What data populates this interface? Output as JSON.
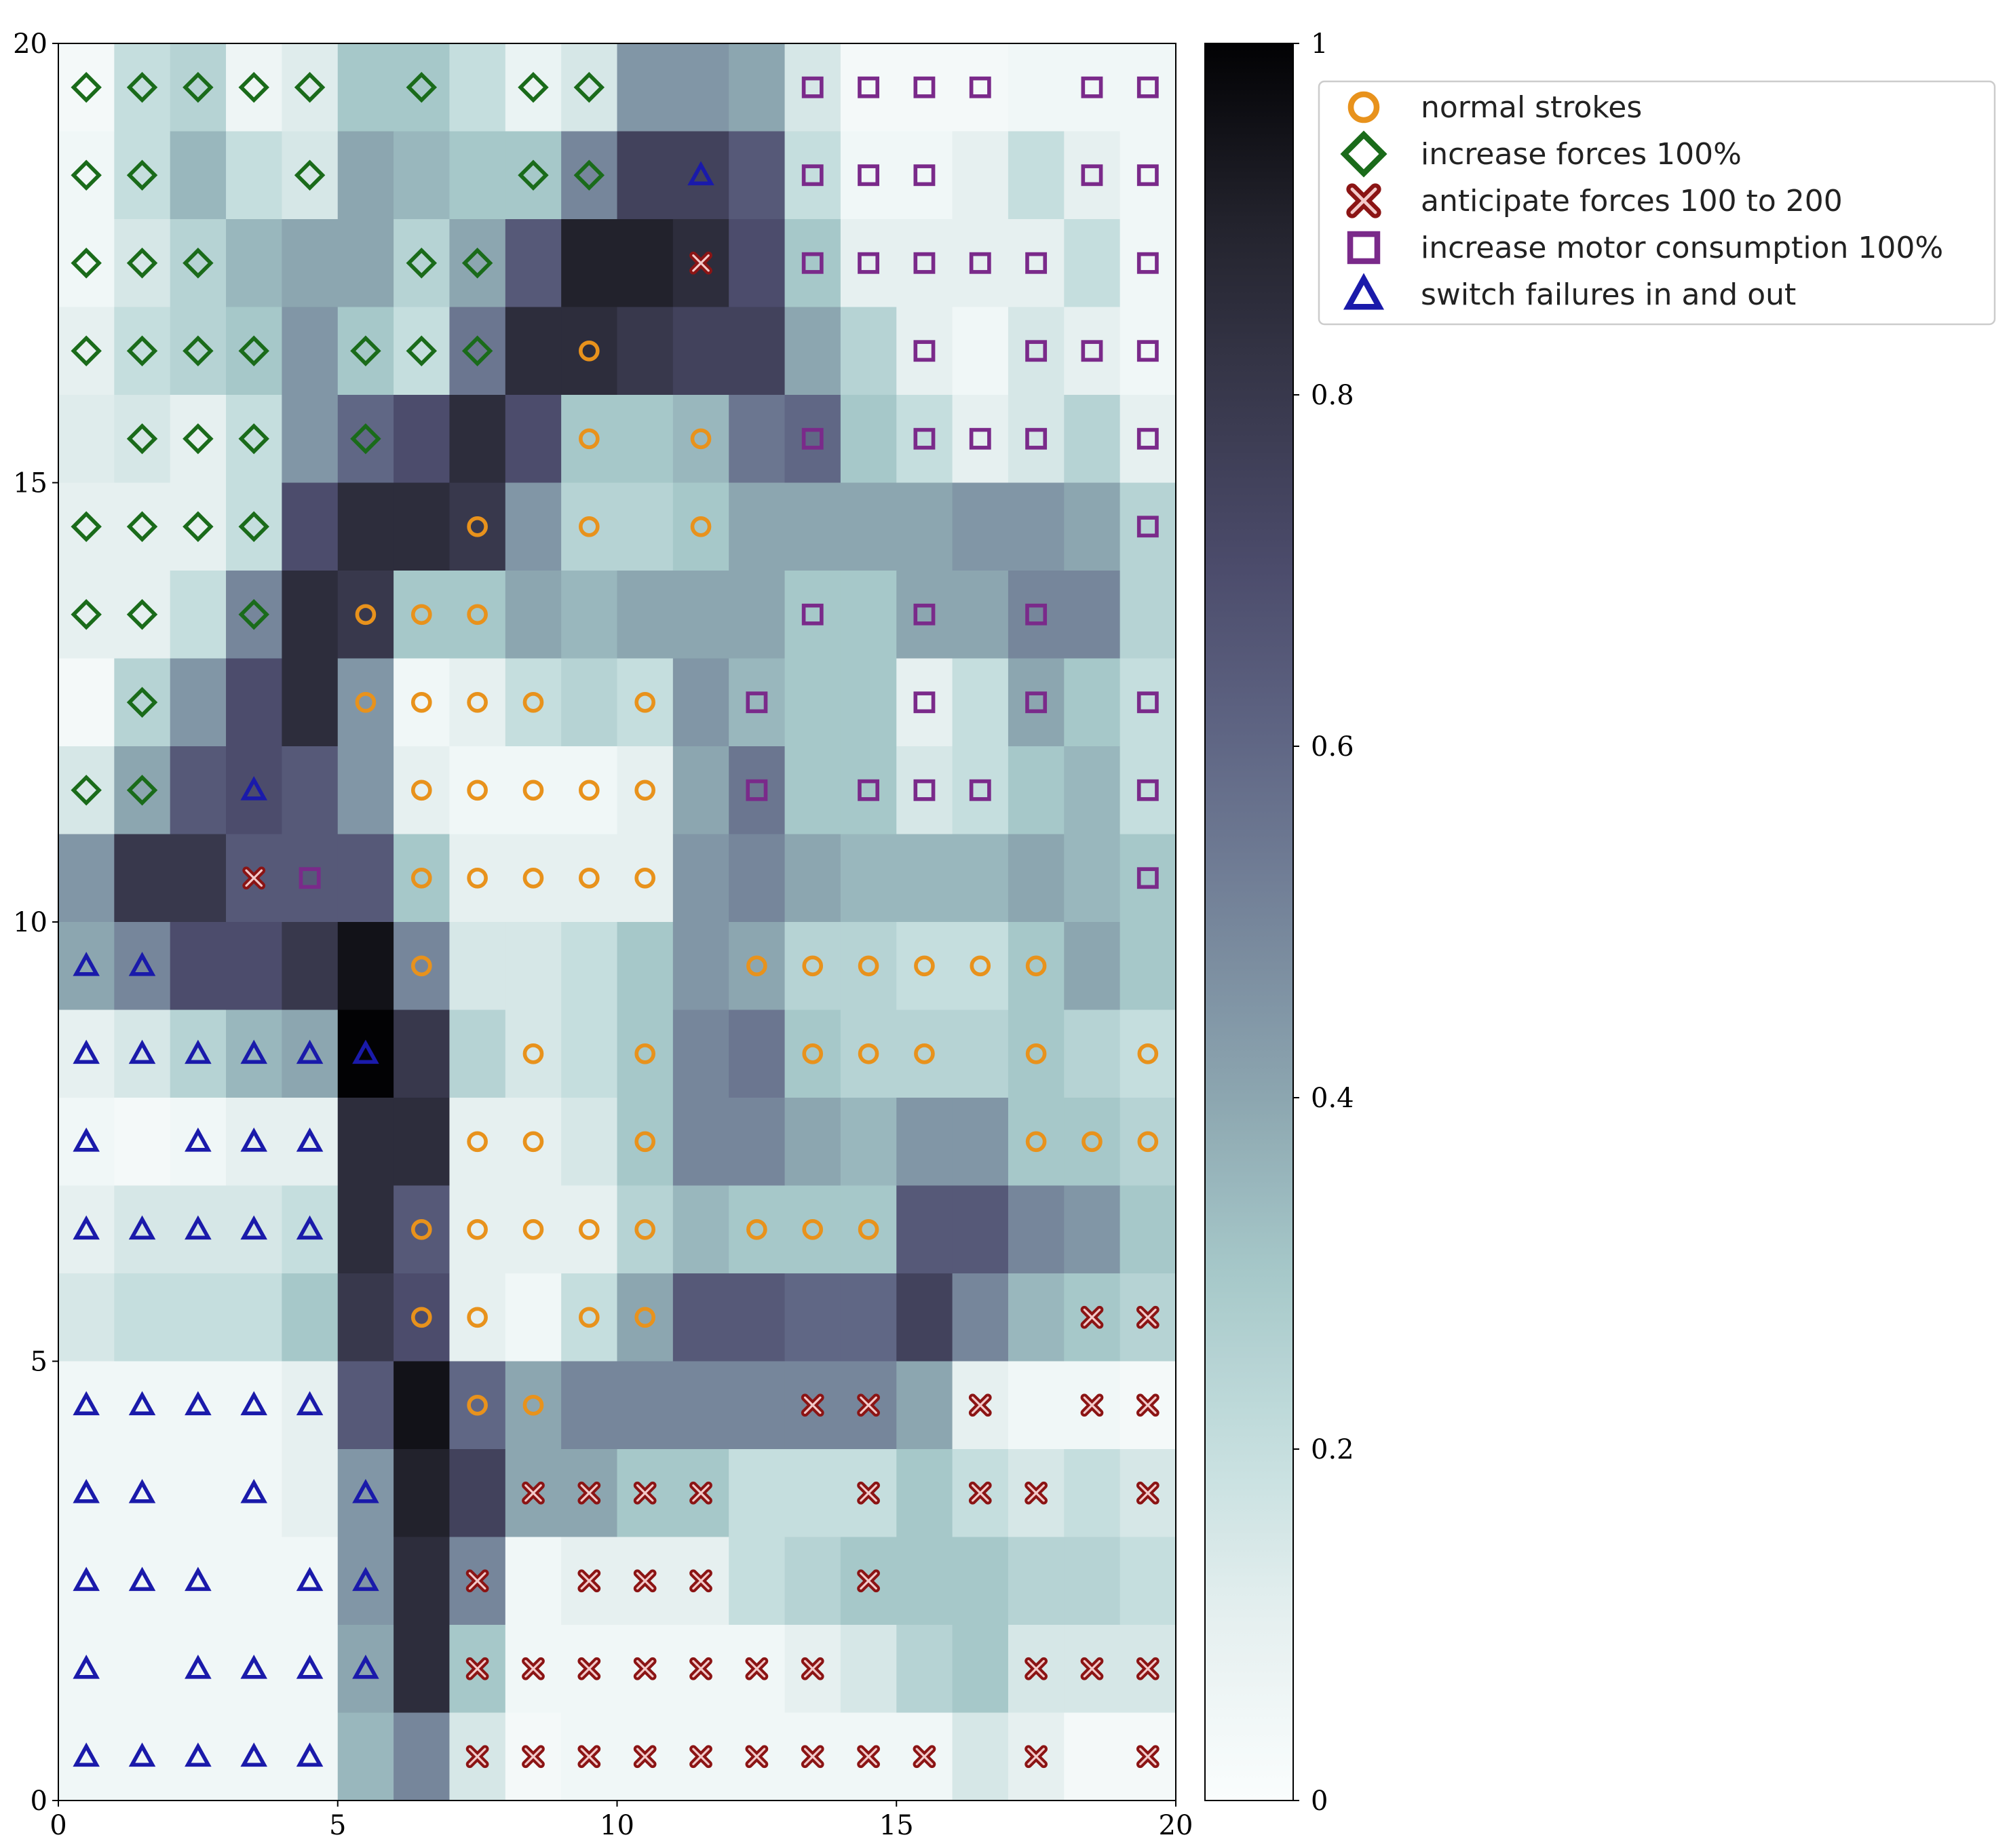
{
  "chart_data": {
    "type": "heatmap",
    "title": "",
    "xlabel": "",
    "ylabel": "",
    "xlim": [
      0,
      20
    ],
    "ylim": [
      0,
      20
    ],
    "x_ticks": [
      "0",
      "5",
      "10",
      "15",
      "20"
    ],
    "y_ticks": [
      "0",
      "5",
      "10",
      "15",
      "20"
    ],
    "colorbar": {
      "min": 0,
      "max": 1,
      "ticks": [
        "0",
        "0.2",
        "0.4",
        "0.6",
        "0.8",
        "1"
      ],
      "colormap": "bone_r"
    },
    "grid_rows_top_to_bottom": [
      [
        0.03,
        0.2,
        0.25,
        0.06,
        0.12,
        0.3,
        0.3,
        0.2,
        0.08,
        0.15,
        0.45,
        0.45,
        0.4,
        0.15,
        0.03,
        0.03,
        0.03,
        0.05,
        0.05,
        0.05
      ],
      [
        0.05,
        0.2,
        0.35,
        0.2,
        0.15,
        0.4,
        0.35,
        0.3,
        0.3,
        0.5,
        0.75,
        0.75,
        0.65,
        0.2,
        0.05,
        0.05,
        0.1,
        0.2,
        0.1,
        0.05
      ],
      [
        0.05,
        0.15,
        0.25,
        0.35,
        0.4,
        0.4,
        0.25,
        0.4,
        0.65,
        0.9,
        0.9,
        0.85,
        0.7,
        0.3,
        0.1,
        0.1,
        0.1,
        0.1,
        0.2,
        0.05
      ],
      [
        0.1,
        0.2,
        0.25,
        0.3,
        0.45,
        0.3,
        0.2,
        0.55,
        0.85,
        0.85,
        0.8,
        0.75,
        0.75,
        0.4,
        0.25,
        0.1,
        0.05,
        0.15,
        0.1,
        0.05
      ],
      [
        0.12,
        0.15,
        0.1,
        0.2,
        0.45,
        0.6,
        0.7,
        0.85,
        0.7,
        0.3,
        0.3,
        0.35,
        0.55,
        0.6,
        0.3,
        0.2,
        0.1,
        0.15,
        0.25,
        0.1
      ],
      [
        0.1,
        0.1,
        0.1,
        0.2,
        0.7,
        0.85,
        0.85,
        0.8,
        0.45,
        0.25,
        0.25,
        0.3,
        0.4,
        0.4,
        0.4,
        0.4,
        0.45,
        0.45,
        0.4,
        0.25
      ],
      [
        0.1,
        0.1,
        0.2,
        0.5,
        0.85,
        0.8,
        0.3,
        0.3,
        0.4,
        0.35,
        0.4,
        0.4,
        0.4,
        0.3,
        0.3,
        0.4,
        0.4,
        0.5,
        0.5,
        0.25
      ],
      [
        0.03,
        0.25,
        0.45,
        0.7,
        0.85,
        0.45,
        0.05,
        0.1,
        0.2,
        0.25,
        0.2,
        0.45,
        0.35,
        0.3,
        0.3,
        0.1,
        0.2,
        0.4,
        0.3,
        0.2
      ],
      [
        0.15,
        0.4,
        0.65,
        0.7,
        0.65,
        0.45,
        0.1,
        0.05,
        0.05,
        0.05,
        0.1,
        0.4,
        0.55,
        0.3,
        0.3,
        0.15,
        0.2,
        0.3,
        0.35,
        0.2
      ],
      [
        0.45,
        0.8,
        0.8,
        0.65,
        0.65,
        0.65,
        0.3,
        0.1,
        0.1,
        0.1,
        0.1,
        0.45,
        0.5,
        0.4,
        0.35,
        0.35,
        0.35,
        0.4,
        0.35,
        0.3
      ],
      [
        0.4,
        0.5,
        0.7,
        0.7,
        0.8,
        0.95,
        0.5,
        0.15,
        0.15,
        0.2,
        0.3,
        0.45,
        0.4,
        0.25,
        0.25,
        0.2,
        0.2,
        0.3,
        0.4,
        0.3
      ],
      [
        0.1,
        0.15,
        0.25,
        0.35,
        0.4,
        1.0,
        0.8,
        0.25,
        0.15,
        0.2,
        0.3,
        0.5,
        0.55,
        0.3,
        0.25,
        0.25,
        0.25,
        0.3,
        0.25,
        0.2
      ],
      [
        0.05,
        0.03,
        0.05,
        0.1,
        0.1,
        0.85,
        0.85,
        0.1,
        0.1,
        0.15,
        0.3,
        0.5,
        0.5,
        0.4,
        0.35,
        0.45,
        0.45,
        0.3,
        0.3,
        0.25
      ],
      [
        0.1,
        0.15,
        0.15,
        0.15,
        0.2,
        0.85,
        0.65,
        0.1,
        0.1,
        0.1,
        0.25,
        0.35,
        0.3,
        0.3,
        0.3,
        0.65,
        0.65,
        0.5,
        0.45,
        0.3
      ],
      [
        0.15,
        0.2,
        0.2,
        0.2,
        0.3,
        0.8,
        0.7,
        0.1,
        0.05,
        0.2,
        0.4,
        0.65,
        0.65,
        0.6,
        0.6,
        0.75,
        0.5,
        0.35,
        0.3,
        0.25
      ],
      [
        0.05,
        0.05,
        0.05,
        0.05,
        0.1,
        0.65,
        0.95,
        0.6,
        0.4,
        0.5,
        0.5,
        0.5,
        0.5,
        0.5,
        0.5,
        0.4,
        0.1,
        0.05,
        0.05,
        0.03
      ],
      [
        0.05,
        0.05,
        0.05,
        0.05,
        0.1,
        0.45,
        0.9,
        0.75,
        0.4,
        0.4,
        0.3,
        0.3,
        0.2,
        0.2,
        0.2,
        0.3,
        0.2,
        0.15,
        0.2,
        0.15
      ],
      [
        0.05,
        0.05,
        0.05,
        0.05,
        0.05,
        0.45,
        0.85,
        0.5,
        0.05,
        0.1,
        0.1,
        0.1,
        0.2,
        0.25,
        0.3,
        0.3,
        0.3,
        0.25,
        0.25,
        0.2
      ],
      [
        0.05,
        0.05,
        0.05,
        0.05,
        0.05,
        0.4,
        0.85,
        0.3,
        0.05,
        0.05,
        0.05,
        0.05,
        0.05,
        0.1,
        0.15,
        0.25,
        0.3,
        0.15,
        0.15,
        0.15
      ],
      [
        0.05,
        0.05,
        0.05,
        0.05,
        0.05,
        0.35,
        0.5,
        0.15,
        0.03,
        0.05,
        0.05,
        0.05,
        0.05,
        0.05,
        0.05,
        0.05,
        0.15,
        0.1,
        0.03,
        0.03
      ]
    ],
    "marker_rows_top_to_bottom": [
      "DDDDD.D.DD...SSSS.SS",
      "DD..D...DD.T.SSS..SS",
      "DDD...DD...X.SSSSS.S",
      "DDDD.DDD.O.....S.SSS",
      ".DDD.D...O.O.S.SSS.S",
      "DDDD...O.O.O.......S",
      "DD.D.OOO.....S.S.S..",
      ".D...OOOO.O.S..S.S.S",
      "DD.T..OOOOO.S.SSS..S",
      "...XS.OOOOO........S",
      "TT....O.....OOOOOO..",
      "TTTTTT..O.O..OOO.O.O",
      "T.TTT..OO.O......OOO",
      "TTTTT.OOOOO.OOO.....",
      "......OO.OO.......XX",
      "TTTTT..OO....XX.X.XX",
      "TT.T.T..XXXX..X.XX.X",
      "TTT.TT.X.XXX..X.....",
      "T.TTTT.XXXXXXX...XXX",
      "TTTTT..XXXXXXXXX.X.X"
    ],
    "series": [
      {
        "code": "O",
        "name": "normal strokes",
        "marker": "circle",
        "color": "#E8921C"
      },
      {
        "code": "D",
        "name": "increase forces 100%",
        "marker": "diamond",
        "color": "#1A6B1A"
      },
      {
        "code": "X",
        "name": "anticipate forces 100 to 200",
        "marker": "thick-x",
        "color": "#8B1414"
      },
      {
        "code": "S",
        "name": "increase motor consumption 100%",
        "marker": "square",
        "color": "#7A2A8A"
      },
      {
        "code": "T",
        "name": "switch failures in and out",
        "marker": "triangle",
        "color": "#1A1AAA"
      }
    ],
    "legend_position": "upper-right-outside",
    "grid": false
  }
}
